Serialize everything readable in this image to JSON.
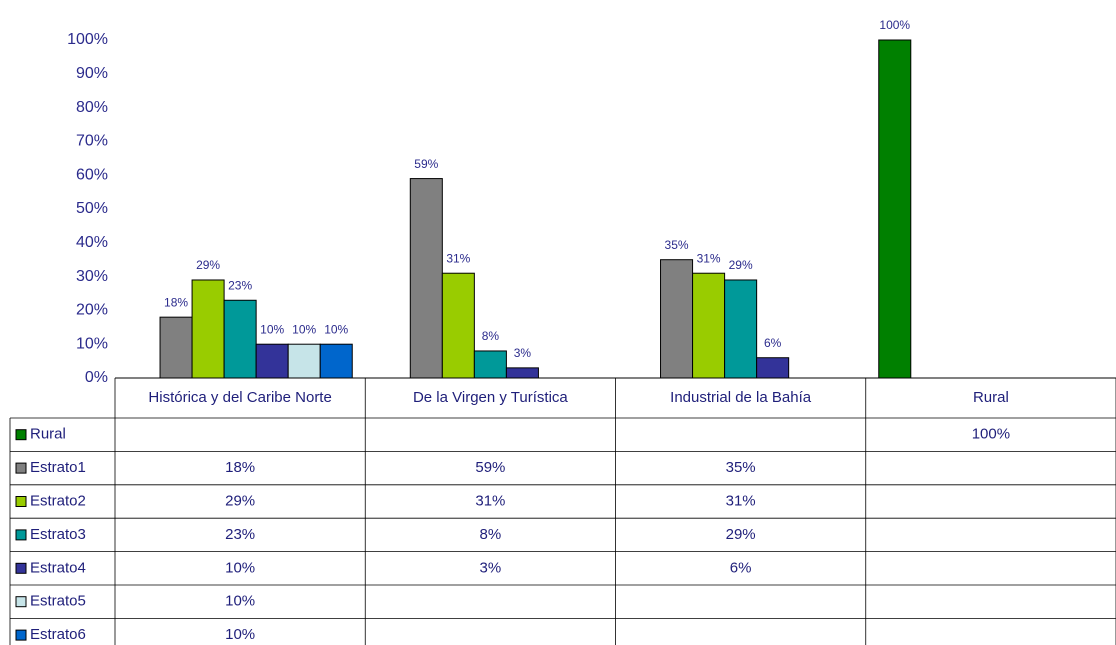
{
  "chart_data": {
    "type": "bar",
    "categories": [
      "Histórica y del Caribe Norte",
      "De la Virgen y Turística",
      "Industrial de la Bahía",
      "Rural"
    ],
    "series": [
      {
        "name": "Rural",
        "color": "#008000",
        "values": [
          null,
          null,
          null,
          100
        ],
        "value_labels": [
          null,
          null,
          null,
          "100%"
        ]
      },
      {
        "name": "Estrato1",
        "color": "#808080",
        "values": [
          18,
          59,
          35,
          null
        ],
        "value_labels": [
          "18%",
          "59%",
          "35%",
          null
        ]
      },
      {
        "name": "Estrato2",
        "color": "#99cc00",
        "values": [
          29,
          31,
          31,
          null
        ],
        "value_labels": [
          "29%",
          "31%",
          "31%",
          null
        ]
      },
      {
        "name": "Estrato3",
        "color": "#009999",
        "values": [
          23,
          8,
          29,
          null
        ],
        "value_labels": [
          "23%",
          "8%",
          "29%",
          null
        ]
      },
      {
        "name": "Estrato4",
        "color": "#333399",
        "values": [
          10,
          3,
          6,
          null
        ],
        "value_labels": [
          "10%",
          "3%",
          "6%",
          null
        ]
      },
      {
        "name": "Estrato5",
        "color": "#c6e4e8",
        "values": [
          10,
          null,
          null,
          null
        ],
        "value_labels": [
          "10%",
          null,
          null,
          null
        ]
      },
      {
        "name": "Estrato6",
        "color": "#0066cc",
        "values": [
          10,
          null,
          null,
          null
        ],
        "value_labels": [
          "10%",
          null,
          null,
          null
        ]
      }
    ],
    "ylim": [
      0,
      100
    ],
    "yticks": [
      {
        "value": 0,
        "label": "0%"
      },
      {
        "value": 10,
        "label": "10%"
      },
      {
        "value": 20,
        "label": "20%"
      },
      {
        "value": 30,
        "label": "30%"
      },
      {
        "value": 40,
        "label": "40%"
      },
      {
        "value": 50,
        "label": "50%"
      },
      {
        "value": 60,
        "label": "60%"
      },
      {
        "value": 70,
        "label": "70%"
      },
      {
        "value": 80,
        "label": "80%"
      },
      {
        "value": 90,
        "label": "90%"
      },
      {
        "value": 100,
        "label": "100%"
      }
    ],
    "grid": false,
    "legend": "table"
  }
}
